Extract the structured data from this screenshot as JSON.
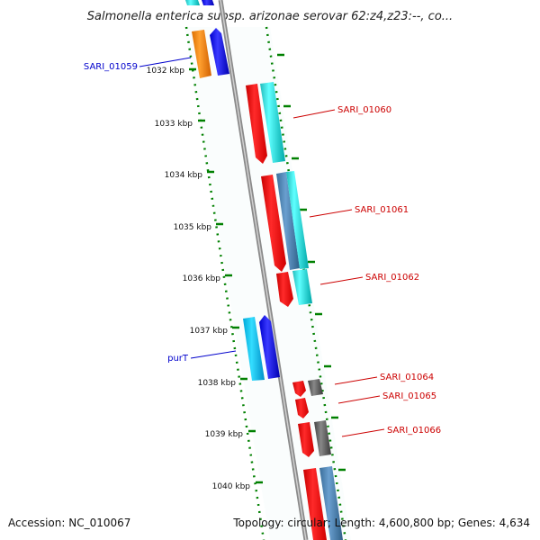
{
  "title": "Salmonella enterica subsp. arizonae serovar 62:z4,z23:--, co...",
  "footer": {
    "accession": "Accession: NC_010067",
    "topology": "Topology: circular; Length: 4,600,800 bp; Genes: 4,634"
  },
  "colors": {
    "red": "#ff0000",
    "cyan": "#00cccc",
    "blue": "#0000ff",
    "orange": "#ff8800",
    "steel": "#4682b4",
    "gray": "#555555",
    "tick": "#008000",
    "backbone": "#888888",
    "label_blue": "#0000cc",
    "label_red": "#cc0000"
  },
  "scale_ticks": [
    "1032 kbp",
    "1033 kbp",
    "1034 kbp",
    "1035 kbp",
    "1036 kbp",
    "1037 kbp",
    "1038 kbp",
    "1039 kbp",
    "1040 kbp"
  ],
  "gene_labels": [
    {
      "text": "SARI_01059",
      "color": "label_blue"
    },
    {
      "text": "SARI_01060",
      "color": "label_red"
    },
    {
      "text": "SARI_01061",
      "color": "label_red"
    },
    {
      "text": "SARI_01062",
      "color": "label_red"
    },
    {
      "text": "purT",
      "color": "label_blue"
    },
    {
      "text": "SARI_01064",
      "color": "label_red"
    },
    {
      "text": "SARI_01065",
      "color": "label_red"
    },
    {
      "text": "SARI_01066",
      "color": "label_red"
    }
  ]
}
